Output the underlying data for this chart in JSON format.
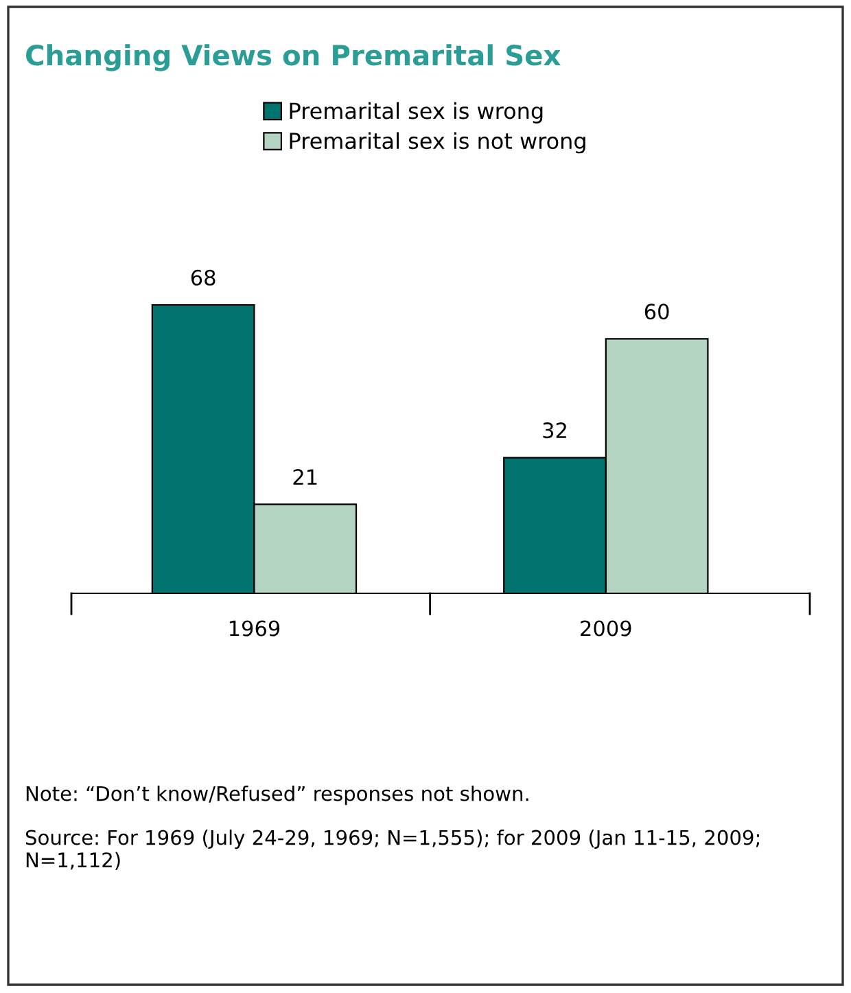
{
  "chart_data": {
    "type": "bar",
    "title": "Changing Views on Premarital Sex",
    "categories": [
      "1969",
      "2009"
    ],
    "series": [
      {
        "name": "Premarital sex is wrong",
        "color": "#00736e",
        "values": [
          68,
          32
        ]
      },
      {
        "name": "Premarital sex is not wrong",
        "color": "#b2d4c0",
        "values": [
          21,
          60
        ]
      }
    ],
    "data_labels": true,
    "legend": "top",
    "grid": false,
    "tick_labels": "x",
    "annotations": [
      "Note: “Don’t know/Refused” responses not shown.",
      "Source: For 1969 (July 24-29, 1969; N=1,555); for 2009 (Jan 11-15, 2009; N=1,112)"
    ]
  }
}
